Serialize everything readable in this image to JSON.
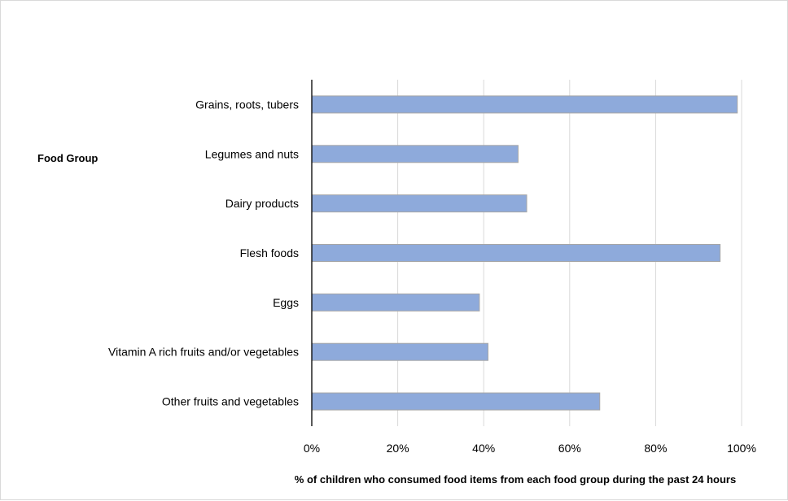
{
  "chart_data": {
    "type": "bar",
    "orientation": "horizontal",
    "categories": [
      "Grains, roots, tubers",
      "Legumes and nuts",
      "Dairy products",
      "Flesh foods",
      "Eggs",
      "Vitamin A rich fruits and/or vegetables",
      "Other fruits and vegetables"
    ],
    "values": [
      99,
      48,
      50,
      95,
      39,
      41,
      67
    ],
    "xlim": [
      0,
      100
    ],
    "x_ticks": [
      "0%",
      "20%",
      "40%",
      "60%",
      "80%",
      "100%"
    ],
    "x_tick_values": [
      0,
      20,
      40,
      60,
      80,
      100
    ],
    "xlabel": "% of children who consumed food items from each food group during the past 24 hours",
    "ylabel": "Food Group",
    "title": "",
    "grid": "vertical",
    "bar_color": "#8eaadb",
    "bar_edge_color": "#a6a6a6",
    "grid_color": "#d9d9d9",
    "axis_color": "#000000"
  }
}
